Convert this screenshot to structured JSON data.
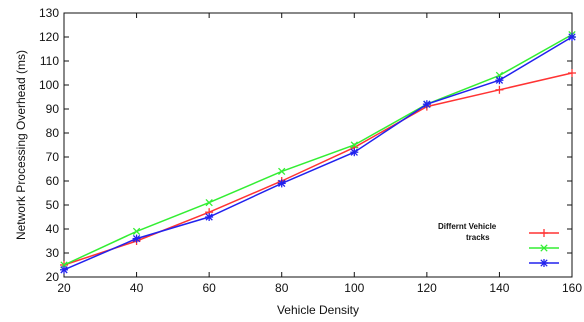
{
  "chart_data": {
    "type": "line",
    "title": "",
    "xlabel": "Vehicle Density",
    "ylabel": "Network Processing Overhead (ms)",
    "x": [
      20,
      40,
      60,
      80,
      100,
      120,
      140,
      160
    ],
    "xlim": [
      20,
      160
    ],
    "ylim": [
      20,
      130
    ],
    "xticks": [
      "20",
      "40",
      "60",
      "80",
      "100",
      "120",
      "140",
      "160"
    ],
    "yticks": [
      "20",
      "30",
      "40",
      "50",
      "60",
      "70",
      "80",
      "90",
      "100",
      "110",
      "120",
      "130"
    ],
    "grid": false,
    "legend": {
      "title_line1": "Differnt Vehicle",
      "title_line2": "tracks",
      "placement": "bottom-right"
    },
    "series": [
      {
        "values": [
          25,
          35,
          47,
          60,
          74,
          91,
          98,
          105
        ],
        "color": "#ff3333",
        "marker": "plus"
      },
      {
        "values": [
          25,
          39,
          51,
          64,
          75,
          92,
          104,
          121
        ],
        "color": "#33ee33",
        "marker": "cross"
      },
      {
        "values": [
          23,
          36,
          45,
          59,
          72,
          92,
          102,
          120
        ],
        "color": "#2222ee",
        "marker": "star"
      }
    ]
  }
}
